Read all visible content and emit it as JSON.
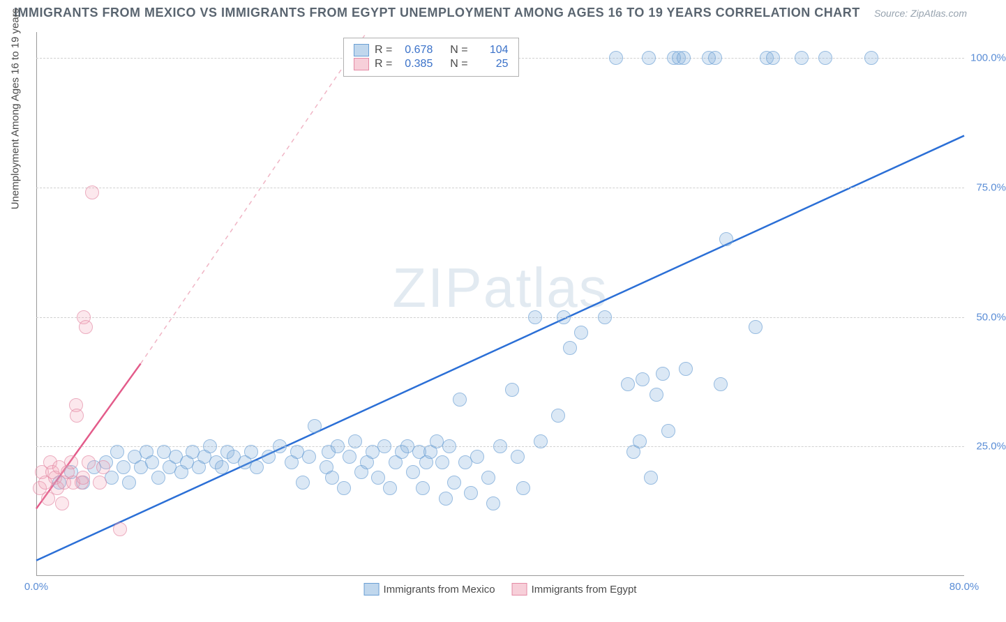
{
  "title": "IMMIGRANTS FROM MEXICO VS IMMIGRANTS FROM EGYPT UNEMPLOYMENT AMONG AGES 16 TO 19 YEARS CORRELATION CHART",
  "source_label": "Source: ZipAtlas.com",
  "watermark": "ZIPatlas",
  "y_axis_label": "Unemployment Among Ages 16 to 19 years",
  "chart": {
    "type": "scatter",
    "x_domain": [
      0,
      80
    ],
    "y_domain": [
      0,
      105
    ],
    "x_ticks": [
      {
        "v": 0,
        "l": "0.0%"
      },
      {
        "v": 80,
        "l": "80.0%"
      }
    ],
    "y_ticks": [
      {
        "v": 25,
        "l": "25.0%"
      },
      {
        "v": 50,
        "l": "50.0%"
      },
      {
        "v": 75,
        "l": "75.0%"
      },
      {
        "v": 100,
        "l": "100.0%"
      }
    ],
    "gridlines_y": [
      25,
      50,
      75,
      100
    ],
    "background_color": "#ffffff",
    "grid_color": "#d0d0d0",
    "marker_size": 20,
    "colors": {
      "blue_fill": "rgba(130,175,220,0.4)",
      "blue_stroke": "#6a9fd4",
      "pink_fill": "rgba(240,160,180,0.35)",
      "pink_stroke": "#e48aa5"
    }
  },
  "series_blue": {
    "label": "Immigrants from Mexico",
    "R": "0.678",
    "N": "104",
    "trend": {
      "x1": 0,
      "y1": 3,
      "x2": 80,
      "y2": 85,
      "color": "#2b6fd6",
      "width": 2.5
    },
    "points": [
      [
        2,
        18
      ],
      [
        3,
        20
      ],
      [
        4,
        18
      ],
      [
        5,
        21
      ],
      [
        6,
        22
      ],
      [
        6.5,
        19
      ],
      [
        7,
        24
      ],
      [
        7.5,
        21
      ],
      [
        8,
        18
      ],
      [
        8.5,
        23
      ],
      [
        9,
        21
      ],
      [
        9.5,
        24
      ],
      [
        10,
        22
      ],
      [
        10.5,
        19
      ],
      [
        11,
        24
      ],
      [
        11.5,
        21
      ],
      [
        12,
        23
      ],
      [
        12.5,
        20
      ],
      [
        13,
        22
      ],
      [
        13.5,
        24
      ],
      [
        14,
        21
      ],
      [
        14.5,
        23
      ],
      [
        15,
        25
      ],
      [
        15.5,
        22
      ],
      [
        16,
        21
      ],
      [
        16.5,
        24
      ],
      [
        17,
        23
      ],
      [
        18,
        22
      ],
      [
        18.5,
        24
      ],
      [
        19,
        21
      ],
      [
        20,
        23
      ],
      [
        21,
        25
      ],
      [
        22,
        22
      ],
      [
        22.5,
        24
      ],
      [
        23,
        18
      ],
      [
        23.5,
        23
      ],
      [
        24,
        29
      ],
      [
        25,
        21
      ],
      [
        25.2,
        24
      ],
      [
        25.5,
        19
      ],
      [
        26,
        25
      ],
      [
        26.5,
        17
      ],
      [
        27,
        23
      ],
      [
        27.5,
        26
      ],
      [
        28,
        20
      ],
      [
        28.5,
        22
      ],
      [
        29,
        24
      ],
      [
        29.5,
        19
      ],
      [
        30,
        25
      ],
      [
        30.5,
        17
      ],
      [
        31,
        22
      ],
      [
        31.5,
        24
      ],
      [
        32,
        25
      ],
      [
        32.5,
        20
      ],
      [
        33,
        24
      ],
      [
        33.3,
        17
      ],
      [
        33.6,
        22
      ],
      [
        34,
        24
      ],
      [
        34.5,
        26
      ],
      [
        35,
        22
      ],
      [
        35.3,
        15
      ],
      [
        35.6,
        25
      ],
      [
        36,
        18
      ],
      [
        36.5,
        34
      ],
      [
        37,
        22
      ],
      [
        37.5,
        16
      ],
      [
        38,
        23
      ],
      [
        39,
        19
      ],
      [
        39.4,
        14
      ],
      [
        40,
        25
      ],
      [
        41,
        36
      ],
      [
        41.5,
        23
      ],
      [
        42,
        17
      ],
      [
        43,
        50
      ],
      [
        43.5,
        26
      ],
      [
        45,
        31
      ],
      [
        45.5,
        50
      ],
      [
        46,
        44
      ],
      [
        47,
        47
      ],
      [
        49,
        50
      ],
      [
        50,
        100
      ],
      [
        51,
        37
      ],
      [
        51.5,
        24
      ],
      [
        52,
        26
      ],
      [
        52.3,
        38
      ],
      [
        52.8,
        100
      ],
      [
        53,
        19
      ],
      [
        53.5,
        35
      ],
      [
        54,
        39
      ],
      [
        54.5,
        28
      ],
      [
        55,
        100
      ],
      [
        55.4,
        100
      ],
      [
        55.8,
        100
      ],
      [
        56,
        40
      ],
      [
        58,
        100
      ],
      [
        58.5,
        100
      ],
      [
        59,
        37
      ],
      [
        59.5,
        65
      ],
      [
        62,
        48
      ],
      [
        63,
        100
      ],
      [
        63.5,
        100
      ],
      [
        66,
        100
      ],
      [
        68,
        100
      ],
      [
        72,
        100
      ]
    ]
  },
  "series_pink": {
    "label": "Immigrants from Egypt",
    "R": "0.385",
    "N": "25",
    "trend_solid": {
      "x1": 0,
      "y1": 13,
      "x2": 9.0,
      "y2": 41,
      "color": "#e35b8a",
      "width": 2.5
    },
    "trend_dashed": {
      "x1": 9.0,
      "y1": 41,
      "x2": 28.5,
      "y2": 105,
      "color": "#f0b5c5",
      "width": 1.5
    },
    "points": [
      [
        0.3,
        17
      ],
      [
        0.5,
        20
      ],
      [
        0.8,
        18
      ],
      [
        1,
        15
      ],
      [
        1.2,
        22
      ],
      [
        1.4,
        20
      ],
      [
        1.6,
        19
      ],
      [
        1.8,
        17
      ],
      [
        2,
        21
      ],
      [
        2.2,
        14
      ],
      [
        2.4,
        18
      ],
      [
        2.7,
        20
      ],
      [
        3,
        22
      ],
      [
        3.2,
        18
      ],
      [
        3.4,
        33
      ],
      [
        3.5,
        31
      ],
      [
        3.9,
        18
      ],
      [
        4,
        19
      ],
      [
        4.1,
        50
      ],
      [
        4.3,
        48
      ],
      [
        4.5,
        22
      ],
      [
        5.5,
        18
      ],
      [
        5.8,
        21
      ],
      [
        7.2,
        9
      ],
      [
        4.8,
        74
      ]
    ]
  },
  "legend_top": {
    "rows": [
      {
        "swatch": "blue",
        "R_label": "R =",
        "R_val": "0.678",
        "N_label": "N =",
        "N_val": "104"
      },
      {
        "swatch": "pink",
        "R_label": "R =",
        "R_val": "0.385",
        "N_label": "N =",
        "N_val": "25"
      }
    ]
  },
  "legend_bottom": {
    "items": [
      {
        "swatch": "blue",
        "label": "Immigrants from Mexico"
      },
      {
        "swatch": "pink",
        "label": "Immigrants from Egypt"
      }
    ]
  }
}
